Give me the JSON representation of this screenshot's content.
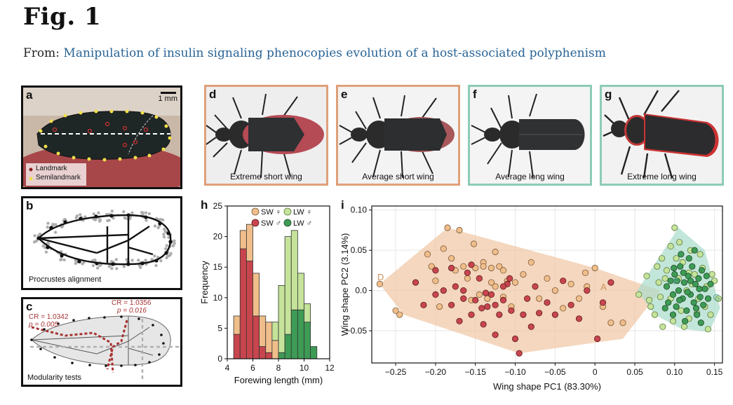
{
  "figure": {
    "title": "Fig. 1",
    "from_label": "From:",
    "article_link": "Manipulation of insulin signaling phenocopies evolution of a host-associated polyphenism"
  },
  "colors": {
    "short_wing_frame": "#e0a07a",
    "long_wing_frame": "#8ccbb8",
    "sw_female": "#f0be8a",
    "sw_male": "#c8454e",
    "lw_female": "#c5e39a",
    "lw_male": "#3e9b55",
    "hull_sw": "#efc6a2",
    "hull_lw": "#a9dccb",
    "link": "#2a6496",
    "modularity_red": "#a83232"
  },
  "panels": {
    "a": {
      "label": "a",
      "scale": "1 mm",
      "legend": [
        "Landmark",
        "Semilandmark"
      ]
    },
    "b": {
      "label": "b",
      "caption": "Procrustes alignment"
    },
    "c": {
      "label": "c",
      "caption": "Modularity tests",
      "test1": {
        "cr": "CR = 1.0342",
        "p": "p = 0.005"
      },
      "test2": {
        "cr": "CR = 1.0356",
        "p": "p = 0.016"
      }
    },
    "d": {
      "label": "d",
      "caption": "Extreme short wing"
    },
    "e": {
      "label": "e",
      "caption": "Average short wing"
    },
    "f": {
      "label": "f",
      "caption": "Average long wing"
    },
    "g": {
      "label": "g",
      "caption": "Extreme long wing"
    }
  },
  "chart_data": [
    {
      "panel": "h",
      "type": "bar",
      "subtype": "stacked histogram",
      "xlabel": "Forewing length (mm)",
      "ylabel": "Frequency",
      "xlim": [
        4,
        12
      ],
      "ylim": [
        0,
        25
      ],
      "xticks": [
        4,
        6,
        8,
        10,
        12
      ],
      "yticks": [
        0,
        5,
        10,
        15,
        20,
        25
      ],
      "bin_width": 0.5,
      "legend": [
        "SW ♀",
        "SW ♂",
        "LW ♀",
        "LW ♂"
      ],
      "legend_position": "top-right",
      "bin_starts": [
        4.5,
        5.0,
        5.5,
        6.0,
        6.5,
        7.0,
        7.5,
        8.0,
        8.5,
        9.0,
        9.5,
        10.0,
        10.5
      ],
      "series": [
        {
          "name": "SW ♂",
          "values": [
            4,
            18,
            16,
            7,
            2,
            1,
            0,
            0,
            0,
            0,
            0,
            0,
            0
          ]
        },
        {
          "name": "SW ♀",
          "values": [
            3,
            3,
            6,
            7,
            5,
            5,
            3,
            0,
            0,
            0,
            0,
            0,
            0
          ]
        },
        {
          "name": "LW ♂",
          "values": [
            0,
            0,
            0,
            0,
            0,
            0,
            0,
            1,
            4,
            8,
            8,
            6,
            2
          ]
        },
        {
          "name": "LW ♀",
          "values": [
            0,
            0,
            0,
            0,
            0,
            0,
            3,
            11,
            16,
            13,
            6,
            3,
            0
          ]
        }
      ]
    },
    {
      "panel": "i",
      "type": "scatter",
      "xlabel": "Wing shape PC1 (83.30%)",
      "ylabel": "Wing shape PC2 (3.14%)",
      "xlim": [
        -0.28,
        0.16
      ],
      "ylim": [
        -0.09,
        0.105
      ],
      "xticks": [
        -0.25,
        -0.2,
        -0.15,
        -0.1,
        -0.05,
        0,
        0.05,
        0.1,
        0.15
      ],
      "xtick_labels": [
        "−0.25",
        "−0.20",
        "−0.15",
        "−0.10",
        "−0.05",
        "0",
        "0.05",
        "0.10",
        "0.15"
      ],
      "yticks": [
        -0.05,
        0,
        0.05,
        0.1
      ],
      "ytick_labels": [
        "−0.05",
        "0.0",
        "0.05",
        "0.10"
      ],
      "grid": true,
      "annotations": [
        {
          "text": "D",
          "x": -0.273,
          "y": 0.017
        },
        {
          "text": "A",
          "x": 0.007,
          "y": 0.005
        },
        {
          "text": "F",
          "x": 0.098,
          "y": 0.012
        },
        {
          "text": "G",
          "x": 0.148,
          "y": -0.008
        }
      ],
      "hulls": [
        {
          "group": "SW",
          "points": [
            [
              -0.27,
              0.008
            ],
            [
              -0.185,
              0.078
            ],
            [
              0.0,
              0.028
            ],
            [
              0.082,
              0.0
            ],
            [
              0.035,
              -0.06
            ],
            [
              -0.095,
              -0.078
            ],
            [
              -0.24,
              -0.03
            ]
          ]
        },
        {
          "group": "LW",
          "points": [
            [
              0.053,
              0.0
            ],
            [
              0.105,
              0.078
            ],
            [
              0.138,
              0.05
            ],
            [
              0.157,
              -0.022
            ],
            [
              0.143,
              -0.052
            ],
            [
              0.107,
              -0.047
            ],
            [
              0.075,
              -0.03
            ]
          ]
        }
      ],
      "series": [
        {
          "name": "SW ♀",
          "points": [
            [
              -0.27,
              0.008
            ],
            [
              -0.25,
              -0.025
            ],
            [
              -0.245,
              -0.03
            ],
            [
              -0.21,
              0.045
            ],
            [
              -0.205,
              0.03
            ],
            [
              -0.2,
              0.012
            ],
            [
              -0.195,
              -0.02
            ],
            [
              -0.19,
              0.052
            ],
            [
              -0.185,
              0.078
            ],
            [
              -0.18,
              0.04
            ],
            [
              -0.175,
              0.025
            ],
            [
              -0.17,
              0.075
            ],
            [
              -0.165,
              0.03
            ],
            [
              -0.16,
              0.015
            ],
            [
              -0.155,
              -0.012
            ],
            [
              -0.15,
              0.028
            ],
            [
              -0.145,
              -0.005
            ],
            [
              -0.14,
              0.035
            ],
            [
              -0.135,
              -0.01
            ],
            [
              -0.13,
              0.028
            ],
            [
              -0.125,
              0.005
            ],
            [
              -0.12,
              0.03
            ],
            [
              -0.115,
              -0.008
            ],
            [
              -0.11,
              0.012
            ],
            [
              -0.105,
              -0.02
            ],
            [
              -0.1,
              0.01
            ],
            [
              -0.09,
              0.02
            ],
            [
              -0.08,
              0.035
            ],
            [
              -0.07,
              -0.01
            ],
            [
              -0.06,
              0.015
            ],
            [
              -0.05,
              0.0
            ],
            [
              -0.04,
              -0.022
            ],
            [
              -0.03,
              0.008
            ],
            [
              -0.02,
              -0.01
            ],
            [
              -0.01,
              0.005
            ],
            [
              0.0,
              0.028
            ],
            [
              0.01,
              -0.02
            ],
            [
              0.02,
              -0.04
            ],
            [
              0.035,
              -0.04
            ],
            [
              -0.125,
              0.048
            ],
            [
              -0.14,
              0.03
            ],
            [
              -0.115,
              0.025
            ],
            [
              -0.012,
              0.022
            ],
            [
              -0.13,
              0.01
            ],
            [
              -0.152,
              0.058
            ]
          ]
        },
        {
          "name": "SW ♂",
          "points": [
            [
              -0.225,
              0.01
            ],
            [
              -0.215,
              -0.018
            ],
            [
              -0.2,
              -0.005
            ],
            [
              -0.19,
              0.0
            ],
            [
              -0.18,
              -0.018
            ],
            [
              -0.175,
              0.005
            ],
            [
              -0.17,
              -0.038
            ],
            [
              -0.165,
              -0.01
            ],
            [
              -0.16,
              0.022
            ],
            [
              -0.155,
              -0.03
            ],
            [
              -0.15,
              -0.012
            ],
            [
              -0.145,
              0.015
            ],
            [
              -0.14,
              -0.042
            ],
            [
              -0.135,
              -0.02
            ],
            [
              -0.13,
              -0.005
            ],
            [
              -0.125,
              -0.018
            ],
            [
              -0.12,
              -0.03
            ],
            [
              -0.115,
              -0.012
            ],
            [
              -0.11,
              0.008
            ],
            [
              -0.105,
              -0.025
            ],
            [
              -0.1,
              -0.06
            ],
            [
              -0.095,
              -0.078
            ],
            [
              -0.09,
              -0.03
            ],
            [
              -0.085,
              -0.01
            ],
            [
              -0.08,
              -0.045
            ],
            [
              -0.075,
              0.005
            ],
            [
              -0.07,
              -0.028
            ],
            [
              -0.06,
              -0.015
            ],
            [
              -0.05,
              -0.03
            ],
            [
              -0.04,
              0.012
            ],
            [
              -0.03,
              -0.018
            ],
            [
              -0.02,
              -0.035
            ],
            [
              -0.01,
              0.0
            ],
            [
              0.01,
              -0.015
            ],
            [
              0.02,
              0.01
            ],
            [
              -0.165,
              0.0
            ],
            [
              -0.18,
              0.028
            ],
            [
              -0.2,
              0.025
            ],
            [
              -0.115,
              0.005
            ],
            [
              -0.155,
              0.032
            ],
            [
              -0.137,
              -0.003
            ],
            [
              -0.125,
              -0.055
            ],
            [
              -0.107,
              0.015
            ],
            [
              0.003,
              -0.06
            ],
            [
              -0.142,
              -0.022
            ]
          ]
        },
        {
          "name": "LW ♀",
          "points": [
            [
              0.055,
              -0.005
            ],
            [
              0.065,
              0.018
            ],
            [
              0.07,
              -0.02
            ],
            [
              0.075,
              -0.03
            ],
            [
              0.08,
              0.01
            ],
            [
              0.085,
              -0.045
            ],
            [
              0.09,
              0.025
            ],
            [
              0.095,
              -0.01
            ],
            [
              0.1,
              0.078
            ],
            [
              0.102,
              0.04
            ],
            [
              0.105,
              0.015
            ],
            [
              0.108,
              -0.025
            ],
            [
              0.11,
              0.035
            ],
            [
              0.115,
              0.0
            ],
            [
              0.118,
              -0.035
            ],
            [
              0.12,
              0.05
            ],
            [
              0.125,
              0.02
            ],
            [
              0.13,
              -0.01
            ],
            [
              0.135,
              0.028
            ],
            [
              0.138,
              -0.02
            ],
            [
              0.14,
              0.005
            ],
            [
              0.145,
              -0.03
            ],
            [
              0.15,
              0.012
            ],
            [
              0.155,
              -0.01
            ],
            [
              0.082,
              -0.008
            ],
            [
              0.088,
              0.015
            ],
            [
              0.095,
              0.055
            ],
            [
              0.112,
              -0.045
            ],
            [
              0.122,
              0.008
            ],
            [
              0.128,
              -0.028
            ],
            [
              0.132,
              0.045
            ],
            [
              0.078,
              0.03
            ],
            [
              0.142,
              -0.048
            ],
            [
              0.068,
              -0.012
            ],
            [
              0.098,
              -0.038
            ],
            [
              0.118,
              0.022
            ],
            [
              0.147,
              0.02
            ],
            [
              0.106,
              0.06
            ],
            [
              0.084,
              0.04
            ]
          ]
        },
        {
          "name": "LW ♂",
          "points": [
            [
              0.09,
              0.005
            ],
            [
              0.092,
              -0.015
            ],
            [
              0.095,
              0.012
            ],
            [
              0.098,
              -0.005
            ],
            [
              0.1,
              0.02
            ],
            [
              0.102,
              -0.02
            ],
            [
              0.105,
              0.0
            ],
            [
              0.107,
              0.03
            ],
            [
              0.11,
              -0.01
            ],
            [
              0.112,
              0.01
            ],
            [
              0.115,
              -0.025
            ],
            [
              0.117,
              0.018
            ],
            [
              0.12,
              -0.005
            ],
            [
              0.122,
              0.03
            ],
            [
              0.124,
              -0.015
            ],
            [
              0.126,
              0.008
            ],
            [
              0.128,
              -0.03
            ],
            [
              0.13,
              0.015
            ],
            [
              0.132,
              -0.008
            ],
            [
              0.134,
              0.025
            ],
            [
              0.136,
              -0.018
            ],
            [
              0.138,
              0.002
            ],
            [
              0.14,
              0.018
            ],
            [
              0.142,
              -0.01
            ],
            [
              0.108,
              0.045
            ],
            [
              0.118,
              0.04
            ],
            [
              0.098,
              -0.03
            ],
            [
              0.125,
              0.05
            ],
            [
              0.113,
              -0.038
            ],
            [
              0.103,
              0.012
            ],
            [
              0.133,
              -0.04
            ],
            [
              0.12,
              0.012
            ],
            [
              0.088,
              -0.022
            ],
            [
              0.145,
              0.008
            ],
            [
              0.111,
              0.022
            ],
            [
              0.127,
              -0.022
            ],
            [
              0.099,
              0.028
            ],
            [
              0.116,
              -0.002
            ],
            [
              0.131,
              0.002
            ],
            [
              0.106,
              -0.012
            ]
          ]
        }
      ]
    }
  ]
}
